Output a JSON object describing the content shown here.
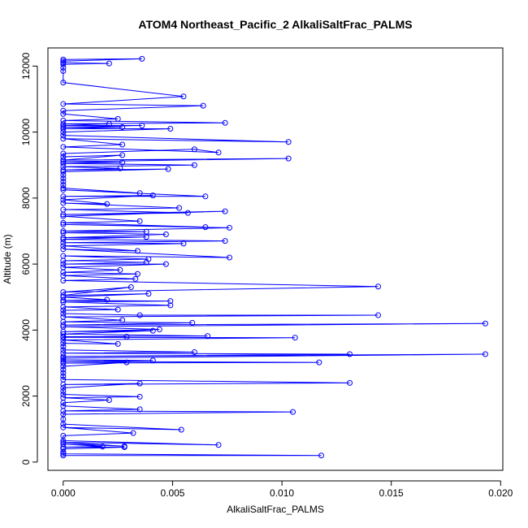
{
  "chart_data": {
    "type": "line",
    "title": "ATOM4 Northeast_Pacific_2 AlkaliSaltFrac_PALMS",
    "xlabel": "AlkaliSaltFrac_PALMS",
    "ylabel": "Altitude (m)",
    "xlim": [
      -0.0007,
      0.0201
    ],
    "ylim": [
      -250,
      12550
    ],
    "x_ticks": [
      0.0,
      0.005,
      0.01,
      0.015,
      0.02
    ],
    "x_tick_labels": [
      "0.000",
      "0.005",
      "0.010",
      "0.015",
      "0.020"
    ],
    "y_ticks": [
      0,
      2000,
      4000,
      6000,
      8000,
      10000,
      12000
    ],
    "y_tick_labels": [
      "0",
      "2000",
      "4000",
      "6000",
      "8000",
      "10000",
      "12000"
    ],
    "grid": false,
    "legend": "none",
    "color": "#0000ff",
    "series": [
      {
        "points": [
          [
            0.0,
            12200
          ],
          [
            0.0036,
            12220
          ],
          [
            0.0,
            12150
          ],
          [
            0.0,
            12100
          ],
          [
            0.0021,
            12080
          ],
          [
            0.0,
            12050
          ],
          [
            0.0,
            11950
          ],
          [
            0.0,
            11850
          ],
          [
            0.0,
            11500
          ],
          [
            0.0055,
            11080
          ],
          [
            0.0,
            10850
          ],
          [
            0.0064,
            10800
          ],
          [
            0.0,
            10650
          ],
          [
            0.0,
            10550
          ],
          [
            0.0025,
            10400
          ],
          [
            0.0,
            10350
          ],
          [
            0.0074,
            10280
          ],
          [
            0.0,
            10250
          ],
          [
            0.0021,
            10250
          ],
          [
            0.0,
            10200
          ],
          [
            0.0036,
            10200
          ],
          [
            0.0,
            10150
          ],
          [
            0.0027,
            10150
          ],
          [
            0.0,
            10100
          ],
          [
            0.0049,
            10100
          ],
          [
            0.0,
            10000
          ],
          [
            0.0,
            9900
          ],
          [
            0.0103,
            9700
          ],
          [
            0.0,
            9800
          ],
          [
            0.0027,
            9620
          ],
          [
            0.0,
            9550
          ],
          [
            0.0071,
            9380
          ],
          [
            0.006,
            9480
          ],
          [
            0.0,
            9350
          ],
          [
            0.0,
            9250
          ],
          [
            0.0027,
            9300
          ],
          [
            0.0,
            9150
          ],
          [
            0.0103,
            9200
          ],
          [
            0.0,
            9100
          ],
          [
            0.0027,
            9080
          ],
          [
            0.0,
            9050
          ],
          [
            0.006,
            9000
          ],
          [
            0.0,
            8950
          ],
          [
            0.0026,
            8900
          ],
          [
            0.0,
            8850
          ],
          [
            0.0048,
            8880
          ],
          [
            0.0,
            8800
          ],
          [
            0.0,
            8700
          ],
          [
            0.0,
            8600
          ],
          [
            0.0,
            8500
          ],
          [
            0.0,
            8400
          ],
          [
            0.0,
            8300
          ],
          [
            0.0035,
            8150
          ],
          [
            0.0,
            8250
          ],
          [
            0.0065,
            8050
          ],
          [
            0.0,
            8050
          ],
          [
            0.0041,
            8080
          ],
          [
            0.0,
            7950
          ],
          [
            0.002,
            7820
          ],
          [
            0.0,
            7850
          ],
          [
            0.0053,
            7700
          ],
          [
            0.0,
            7650
          ],
          [
            0.0057,
            7550
          ],
          [
            0.0,
            7500
          ],
          [
            0.0074,
            7600
          ],
          [
            0.0,
            7450
          ],
          [
            0.0035,
            7300
          ],
          [
            0.0,
            7250
          ],
          [
            0.0065,
            7120
          ],
          [
            0.0,
            7200
          ],
          [
            0.0076,
            7100
          ],
          [
            0.0,
            7000
          ],
          [
            0.0038,
            6980
          ],
          [
            0.0,
            6950
          ],
          [
            0.0047,
            6900
          ],
          [
            0.0,
            6800
          ],
          [
            0.0038,
            6820
          ],
          [
            0.0,
            6750
          ],
          [
            0.0074,
            6700
          ],
          [
            0.0,
            6650
          ],
          [
            0.0055,
            6620
          ],
          [
            0.0,
            6550
          ],
          [
            0.0034,
            6400
          ],
          [
            0.0,
            6450
          ],
          [
            0.0076,
            6200
          ],
          [
            0.0,
            6250
          ],
          [
            0.0039,
            6150
          ],
          [
            0.0,
            6100
          ],
          [
            0.0038,
            6050
          ],
          [
            0.0,
            6000
          ],
          [
            0.0047,
            6000
          ],
          [
            0.0,
            5900
          ],
          [
            0.0026,
            5820
          ],
          [
            0.0,
            5750
          ],
          [
            0.0034,
            5700
          ],
          [
            0.0,
            5650
          ],
          [
            0.0033,
            5550
          ],
          [
            0.0,
            5500
          ],
          [
            0.0144,
            5320
          ],
          [
            0.0,
            5150
          ],
          [
            0.0031,
            5300
          ],
          [
            0.0,
            5050
          ],
          [
            0.0039,
            5100
          ],
          [
            0.0,
            5000
          ],
          [
            0.002,
            4920
          ],
          [
            0.0,
            4900
          ],
          [
            0.0049,
            4880
          ],
          [
            0.0,
            4850
          ],
          [
            0.0049,
            4750
          ],
          [
            0.0,
            4700
          ],
          [
            0.0025,
            4620
          ],
          [
            0.0,
            4600
          ],
          [
            0.0,
            4500
          ],
          [
            0.0035,
            4450
          ],
          [
            0.0144,
            4450
          ],
          [
            0.0,
            4400
          ],
          [
            0.0027,
            4300
          ],
          [
            0.0,
            4250
          ],
          [
            0.0059,
            4220
          ],
          [
            0.0,
            4150
          ],
          [
            0.0193,
            4200
          ],
          [
            0.0,
            4100
          ],
          [
            0.0044,
            4020
          ],
          [
            0.0,
            3950
          ],
          [
            0.0041,
            3980
          ],
          [
            0.0,
            3880
          ],
          [
            0.0066,
            3820
          ],
          [
            0.0,
            3800
          ],
          [
            0.0029,
            3800
          ],
          [
            0.0,
            3780
          ],
          [
            0.0106,
            3770
          ],
          [
            0.0,
            3700
          ],
          [
            0.0025,
            3580
          ],
          [
            0.0,
            3600
          ],
          [
            0.0,
            3500
          ],
          [
            0.0,
            3400
          ],
          [
            0.006,
            3330
          ],
          [
            0.0,
            3300
          ],
          [
            0.0131,
            3270
          ],
          [
            0.0,
            3200
          ],
          [
            0.0193,
            3270
          ],
          [
            0.0,
            3150
          ],
          [
            0.0,
            3100
          ],
          [
            0.0041,
            3080
          ],
          [
            0.0,
            3050
          ],
          [
            0.0117,
            3020
          ],
          [
            0.0,
            3000
          ],
          [
            0.0029,
            3020
          ],
          [
            0.0,
            2900
          ],
          [
            0.0,
            2800
          ],
          [
            0.0,
            2700
          ],
          [
            0.0,
            2600
          ],
          [
            0.0,
            2500
          ],
          [
            0.0131,
            2400
          ],
          [
            0.0,
            2350
          ],
          [
            0.0035,
            2380
          ],
          [
            0.0,
            2250
          ],
          [
            0.0,
            2150
          ],
          [
            0.0,
            2050
          ],
          [
            0.0035,
            1980
          ],
          [
            0.0,
            1950
          ],
          [
            0.0021,
            1880
          ],
          [
            0.0,
            1800
          ],
          [
            0.0,
            1700
          ],
          [
            0.0035,
            1600
          ],
          [
            0.0,
            1550
          ],
          [
            0.0105,
            1520
          ],
          [
            0.0,
            1450
          ],
          [
            0.0,
            1300
          ],
          [
            0.0,
            1150
          ],
          [
            0.0054,
            980
          ],
          [
            0.0,
            1050
          ],
          [
            0.0032,
            880
          ],
          [
            0.0,
            800
          ],
          [
            0.0,
            650
          ],
          [
            0.0071,
            520
          ],
          [
            0.0,
            600
          ],
          [
            0.0028,
            480
          ],
          [
            0.0,
            550
          ],
          [
            0.0018,
            470
          ],
          [
            0.0,
            450
          ],
          [
            0.0028,
            450
          ],
          [
            0.0,
            400
          ],
          [
            0.0,
            300
          ],
          [
            0.0,
            250
          ],
          [
            0.0118,
            200
          ],
          [
            0.0,
            200
          ]
        ]
      }
    ]
  }
}
